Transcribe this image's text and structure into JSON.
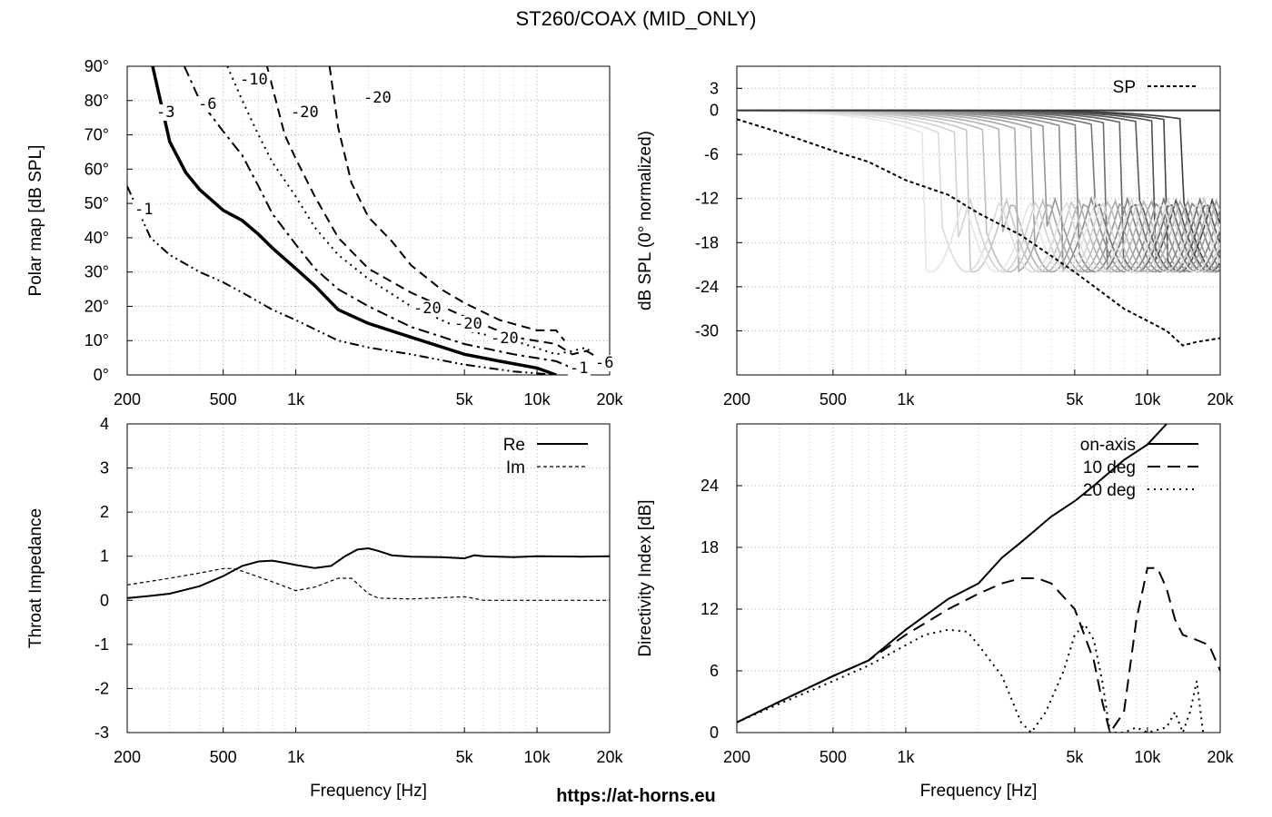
{
  "title": "ST260/COAX (MID_ONLY)",
  "footer": "https://at-horns.eu",
  "chart_data": [
    {
      "id": "polar-map",
      "type": "line",
      "xscale": "log",
      "xlim": [
        200,
        20000
      ],
      "ylim": [
        0,
        90
      ],
      "ylabel": "Polar map [dB SPL]",
      "xlabel": "",
      "xticks": [
        "200",
        "500",
        "1k",
        "5k",
        "10k",
        "20k"
      ],
      "yticks": [
        "0°",
        "10°",
        "20°",
        "30°",
        "40°",
        "50°",
        "60°",
        "70°",
        "80°",
        "90°"
      ],
      "series": [
        {
          "name": "-1",
          "x": [
            200,
            250,
            300,
            400,
            500,
            600,
            800,
            1000,
            1500,
            2000,
            3000,
            5000,
            8000,
            12000
          ],
          "y": [
            55,
            40,
            35,
            30,
            27,
            24,
            19,
            16,
            10,
            8,
            6,
            3,
            1,
            0
          ]
        },
        {
          "name": "-3",
          "x": [
            255,
            300,
            350,
            400,
            500,
            600,
            700,
            800,
            1000,
            1200,
            1500,
            2000,
            3000,
            5000,
            7000,
            10000,
            12000
          ],
          "y": [
            90,
            68,
            59,
            54,
            48,
            45,
            41,
            37,
            31,
            26,
            19,
            15,
            11,
            6,
            4,
            2,
            0
          ]
        },
        {
          "name": "-6",
          "x": [
            345,
            400,
            500,
            600,
            700,
            800,
            1000,
            1200,
            1500,
            2000,
            3000,
            5000,
            8000,
            12000,
            14000,
            16000,
            18000,
            20000
          ],
          "y": [
            90,
            80,
            71,
            64,
            55,
            47,
            38,
            31,
            25,
            20,
            14,
            9,
            6,
            4,
            2,
            3,
            2,
            2
          ]
        },
        {
          "name": "-10",
          "x": [
            520,
            600,
            700,
            800,
            1000,
            1200,
            1500,
            2000,
            3000,
            5000,
            8000,
            12000,
            14000,
            16000,
            18000
          ],
          "y": [
            90,
            80,
            70,
            62,
            52,
            43,
            35,
            28,
            20,
            13,
            10,
            6,
            7,
            8,
            4
          ]
        },
        {
          "name": "-20 (a)",
          "x": [
            760,
            900,
            1000,
            1200,
            1500,
            2000,
            3000,
            5000,
            8000,
            12000,
            14000,
            16000,
            18000
          ],
          "y": [
            90,
            70,
            63,
            52,
            40,
            31,
            24,
            17,
            11,
            9,
            6,
            7,
            5
          ]
        },
        {
          "name": "-20 (b)",
          "x": [
            1380,
            1500,
            1700,
            2000,
            2500,
            3000,
            4000,
            5000,
            7000,
            10000,
            12000,
            13000
          ],
          "y": [
            90,
            72,
            56,
            46,
            39,
            32,
            25,
            21,
            16,
            13,
            13,
            10
          ]
        }
      ],
      "annotations": [
        "-1",
        "-3",
        "-6",
        "-10",
        "-20",
        "-20",
        "-20",
        "-20",
        "-20",
        "-1",
        "-6"
      ]
    },
    {
      "id": "normalized-spl",
      "type": "line",
      "xscale": "log",
      "xlim": [
        200,
        20000
      ],
      "ylim": [
        -36,
        6
      ],
      "ylabel": "dB SPL (0° normalized)",
      "xlabel": "",
      "xticks": [
        "200",
        "500",
        "1k",
        "5k",
        "10k",
        "20k"
      ],
      "yticks": [
        "3",
        "0",
        "-6",
        "-12",
        "-18",
        "-24",
        "-30"
      ],
      "legend": {
        "position": "top-right",
        "entries": [
          "SP"
        ]
      },
      "series": [
        {
          "name": "SP",
          "x": [
            200,
            300,
            500,
            700,
            1000,
            1500,
            2000,
            3000,
            5000,
            8000,
            12000,
            14000,
            16000,
            20000
          ],
          "y": [
            -1.2,
            -3,
            -5.5,
            -7,
            -9.5,
            -11.5,
            -14,
            -17,
            -22,
            -27,
            -30,
            -32,
            -31.5,
            -31
          ]
        }
      ]
    },
    {
      "id": "throat-impedance",
      "type": "line",
      "xscale": "log",
      "xlim": [
        200,
        20000
      ],
      "ylim": [
        -3,
        4
      ],
      "ylabel": "Throat Impedance",
      "xlabel": "Frequency [Hz]",
      "xticks": [
        "200",
        "500",
        "1k",
        "5k",
        "10k",
        "20k"
      ],
      "yticks": [
        "4",
        "3",
        "2",
        "1",
        "0",
        "-1",
        "-2",
        "-3"
      ],
      "legend": {
        "position": "top-right",
        "entries": [
          "Re",
          "Im"
        ]
      },
      "series": [
        {
          "name": "Re",
          "x": [
            200,
            250,
            300,
            400,
            500,
            600,
            700,
            800,
            900,
            1000,
            1200,
            1400,
            1600,
            1800,
            2000,
            2200,
            2500,
            3000,
            4000,
            5000,
            5500,
            6000,
            8000,
            10000,
            15000,
            20000
          ],
          "y": [
            0.05,
            0.1,
            0.15,
            0.32,
            0.55,
            0.78,
            0.88,
            0.9,
            0.85,
            0.8,
            0.73,
            0.78,
            1.0,
            1.15,
            1.18,
            1.12,
            1.02,
            0.99,
            0.98,
            0.95,
            1.02,
            1.0,
            0.98,
            1.0,
            0.99,
            1.0
          ]
        },
        {
          "name": "Im",
          "x": [
            200,
            300,
            400,
            500,
            550,
            600,
            800,
            1000,
            1200,
            1500,
            1700,
            2000,
            2200,
            3000,
            5000,
            5500,
            6000,
            10000,
            20000
          ],
          "y": [
            0.35,
            0.5,
            0.62,
            0.72,
            0.72,
            0.66,
            0.42,
            0.22,
            0.3,
            0.5,
            0.5,
            0.15,
            0.05,
            0.03,
            0.08,
            0.04,
            0.0,
            0.0,
            0.0
          ]
        }
      ]
    },
    {
      "id": "directivity-index",
      "type": "line",
      "xscale": "log",
      "xlim": [
        200,
        20000
      ],
      "ylim": [
        0,
        30
      ],
      "ylabel": "Directivity Index [dB]",
      "xlabel": "Frequency [Hz]",
      "xticks": [
        "200",
        "500",
        "1k",
        "5k",
        "10k",
        "20k"
      ],
      "yticks": [
        "0",
        "6",
        "12",
        "18",
        "24"
      ],
      "legend": {
        "position": "top-right",
        "entries": [
          "on-axis",
          "10 deg",
          "20 deg"
        ]
      },
      "series": [
        {
          "name": "on-axis",
          "x": [
            200,
            300,
            500,
            700,
            1000,
            1500,
            2000,
            2500,
            3000,
            4000,
            5000,
            6000,
            8000,
            10000,
            12000
          ],
          "y": [
            1.0,
            3.0,
            5.5,
            7.0,
            10.0,
            13.0,
            14.5,
            17.0,
            18.5,
            21.0,
            22.5,
            24.0,
            26.5,
            28.0,
            30.0
          ]
        },
        {
          "name": "10 deg",
          "x": [
            200,
            300,
            500,
            700,
            1000,
            1500,
            2000,
            2500,
            3000,
            3500,
            4000,
            5000,
            6000,
            6500,
            7000,
            8000,
            9000,
            10000,
            11000,
            12000,
            13000,
            14000,
            16000,
            18000,
            20000
          ],
          "y": [
            1.0,
            3.0,
            5.5,
            7.0,
            9.5,
            12.0,
            13.5,
            14.5,
            15.0,
            15.0,
            14.5,
            12.0,
            7.0,
            3.0,
            0.0,
            2.0,
            11.0,
            16.0,
            16.0,
            14.0,
            11.0,
            9.5,
            9.0,
            8.5,
            6.0
          ]
        },
        {
          "name": "20 deg",
          "x": [
            200,
            300,
            500,
            700,
            1000,
            1200,
            1500,
            1800,
            2000,
            2500,
            3000,
            3300,
            3800,
            4500,
            5000,
            5500,
            6000,
            6500,
            7000,
            8000,
            9000,
            10000,
            12000,
            13000,
            14000,
            15000,
            16000,
            17000
          ],
          "y": [
            1.0,
            2.8,
            5.0,
            6.5,
            8.5,
            9.5,
            10.0,
            9.8,
            8.5,
            5.5,
            1.0,
            0.0,
            2.0,
            6.0,
            9.5,
            10.5,
            9.0,
            5.0,
            0.0,
            0.0,
            0.5,
            0.0,
            0.5,
            2.0,
            0.0,
            2.0,
            5.0,
            0.0
          ]
        }
      ]
    }
  ]
}
